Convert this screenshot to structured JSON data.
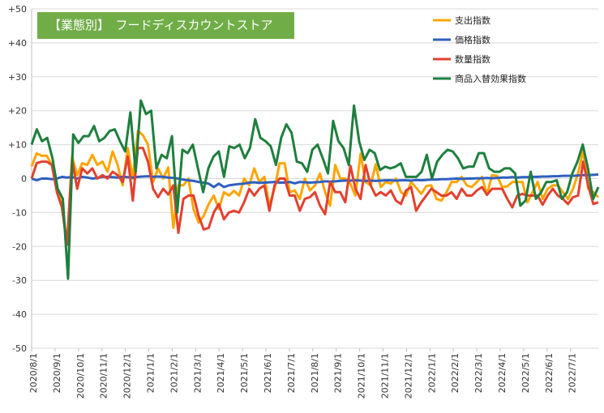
{
  "title": "【業態別】　フードディスカウントストア",
  "chart_data": {
    "type": "line",
    "title": "【業態別】　フードディスカウントストア",
    "ylim": [
      -50,
      50
    ],
    "yticks": [
      50,
      40,
      30,
      20,
      10,
      0,
      -10,
      -20,
      -30,
      -40,
      -50
    ],
    "ytick_labels": [
      "+50",
      "+40",
      "+30",
      "+20",
      "+10",
      "0",
      "-10",
      "-20",
      "-30",
      "-40",
      "-50"
    ],
    "x_labels": [
      "2020/8/1",
      "2020/9/1",
      "2020/10/1",
      "2020/11/1",
      "2020/12/1",
      "2021/1/1",
      "2021/2/1",
      "2021/3/1",
      "2021/4/1",
      "2021/5/1",
      "2021/6/1",
      "2021/7/1",
      "2021/8/1",
      "2021/9/1",
      "2021/10/1",
      "2021/11/1",
      "2021/12/1",
      "2022/1/1",
      "2022/2/1",
      "2022/3/1",
      "2022/4/1",
      "2022/5/1",
      "2022/6/1",
      "2022/7/1"
    ],
    "legend_position": "top-right",
    "grid": true,
    "series": [
      {
        "name": "支出指数",
        "color": "#ffa500",
        "values": [
          3.6,
          7.4,
          6.7,
          6.7,
          4,
          -3,
          -8,
          -19,
          6.5,
          1,
          4.5,
          4,
          7,
          4,
          5,
          2,
          8,
          4,
          -2,
          9,
          0,
          14,
          12.8,
          10,
          -1,
          3,
          0,
          3.3,
          -14.5,
          -2,
          -2,
          0,
          -9,
          -13,
          -11,
          -7.5,
          -5,
          -9,
          -4,
          -5,
          -3.6,
          -5,
          0,
          -2,
          3,
          -1,
          0.5,
          -8,
          -3,
          4.5,
          4.5,
          -4,
          -3.5,
          -6,
          0,
          -3.5,
          -2,
          1.5,
          -4,
          -8,
          4,
          0,
          0,
          -1.5,
          -5,
          7.3,
          -1,
          -2,
          4.2,
          -2.5,
          -1,
          -1.5,
          0,
          -4,
          -5,
          -1,
          -2.7,
          -4.5,
          -2.2,
          -2,
          -6,
          -6.5,
          -4,
          -1,
          -1,
          0.5,
          -2,
          -2.5,
          -1,
          0.5,
          -4.7,
          1,
          0.8,
          -2.5,
          -2.3,
          -1,
          -1,
          -1,
          -7,
          -4,
          -1,
          -6,
          -3,
          -2,
          -2,
          -4,
          -6,
          -3,
          1.5,
          8.5,
          -3,
          -4,
          -5.5
        ],
        "note_min_label": "-13"
      },
      {
        "name": "価格指数",
        "color": "#2f5fbf",
        "values": [
          0,
          -0.5,
          0,
          0,
          -0.2,
          0,
          0.5,
          0.3,
          0.5,
          0,
          0.5,
          0.3,
          0,
          0.2,
          0.5,
          0.5,
          0.4,
          0.3,
          0.5,
          0.4,
          0.3,
          0.5,
          0.6,
          0.7,
          0.5,
          0.6,
          0.5,
          0.3,
          0.2,
          0,
          -0.3,
          -0.5,
          -0.7,
          -1,
          -1.2,
          -1.5,
          -2.5,
          -1.5,
          -2.5,
          -2,
          -1.8,
          -1.6,
          -1.5,
          -1.2,
          -1.1,
          -1.3,
          -1.2,
          -1.1,
          -1,
          -1.2,
          -1.2,
          -1,
          -1.4,
          -1,
          -1.1,
          -1.2,
          -1.1,
          -1,
          -0.8,
          -0.9,
          -0.8,
          -0.7,
          -0.6,
          -0.6,
          -0.5,
          -0.6,
          -0.7,
          -0.6,
          -0.7,
          -0.6,
          -0.5,
          -0.5,
          -0.6,
          -0.5,
          -0.5,
          -0.6,
          -0.4,
          -0.5,
          -0.4,
          -0.3,
          -0.3,
          -0.2,
          -0.2,
          -0.1,
          0,
          -0.1,
          0,
          0,
          0.1,
          0.1,
          0.2,
          0.1,
          0.2,
          0.3,
          0.3,
          0.4,
          0.3,
          0.4,
          0.4,
          0.5,
          0.5,
          0.6,
          0.6,
          0.7,
          0.7,
          0.8,
          0.8,
          0.8,
          0.9,
          1,
          1,
          1.1,
          1.2
        ]
      },
      {
        "name": "数量指数",
        "color": "#e3402f",
        "values": [
          0,
          4.5,
          5,
          5,
          4,
          -4,
          -8.5,
          -19.5,
          5.5,
          -3,
          3,
          1.5,
          3,
          0,
          1,
          0,
          2,
          1,
          -1,
          6.5,
          -6.5,
          9,
          9,
          5,
          -3,
          -5.5,
          -3,
          -4.7,
          -2,
          -16,
          -6,
          -5,
          -5,
          -11,
          -15,
          -14.5,
          -10,
          -7.5,
          -12,
          -10,
          -9.5,
          -10,
          -7,
          -3,
          -5,
          -3,
          -2,
          -9.5,
          -2,
          0,
          0,
          -5,
          -5,
          -9.5,
          -6,
          -5.5,
          -4,
          -8,
          -10.5,
          -1,
          -4,
          -4,
          -7,
          3.8,
          -3,
          -6,
          4,
          -2,
          -5,
          -4,
          -5,
          -3.5,
          -6.5,
          -7.5,
          -3.5,
          -2.5,
          -9.5,
          -7,
          -5,
          -3,
          -4,
          -5,
          -5,
          -4,
          -6,
          -3,
          -5,
          -5,
          -3.5,
          -2.5,
          -4.8,
          -3,
          -3,
          -3,
          -6,
          -8.5,
          -5,
          -4.5,
          -5,
          -5,
          -5,
          -7.7,
          -5,
          -3,
          -5,
          -6,
          -7.5,
          -5.5,
          -5,
          5,
          -2,
          -7.5,
          -7
        ]
      },
      {
        "name": "商品入替効果指数",
        "color": "#1e7f3e",
        "values": [
          10,
          14.5,
          11,
          12,
          6,
          -3,
          -6,
          -29.5,
          13,
          10.5,
          12.5,
          12.5,
          15.5,
          11,
          12,
          14,
          14.5,
          11,
          8,
          19.5,
          2,
          23,
          19,
          20,
          3,
          7,
          6,
          12.5,
          -10,
          8.5,
          7.5,
          10,
          3,
          -4,
          3,
          6.5,
          8,
          0.5,
          9.5,
          9,
          10,
          6,
          9,
          17.5,
          12,
          11,
          9.5,
          4,
          12,
          16,
          13.5,
          5,
          4.5,
          2,
          8.5,
          10,
          6,
          1.5,
          17,
          11,
          9,
          4,
          21.5,
          11,
          5.5,
          8.5,
          7.5,
          2.5,
          3.5,
          3,
          3.5,
          4.5,
          0.5,
          0.5,
          0.5,
          2,
          7,
          0,
          5,
          7,
          8.5,
          8,
          6,
          3,
          3.5,
          3.5,
          7.5,
          7.5,
          3,
          2,
          2,
          3,
          3,
          1.5,
          -8,
          -6.5,
          2,
          -6,
          -4,
          -1,
          -1,
          -0.5,
          -6,
          -4,
          1.5,
          5,
          10,
          3,
          -6,
          -2.5
        ]
      }
    ]
  }
}
